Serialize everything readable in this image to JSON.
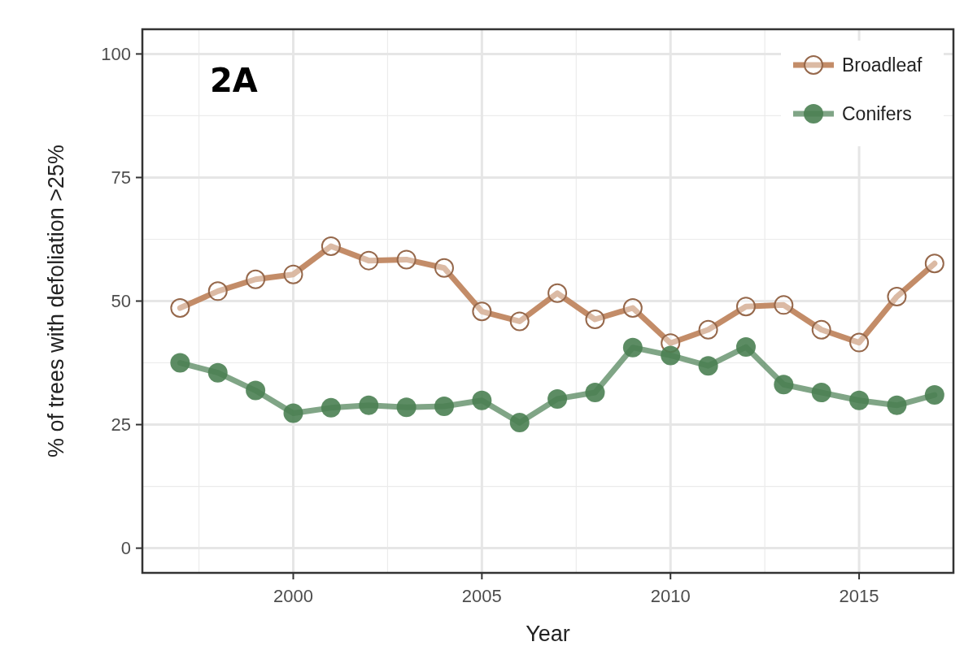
{
  "chart_data": {
    "type": "line",
    "title": "2A",
    "xlabel": "Year",
    "ylabel": "% of trees with defoliation >25%",
    "x": [
      1997,
      1998,
      1999,
      2000,
      2001,
      2002,
      2003,
      2004,
      2005,
      2006,
      2007,
      2008,
      2009,
      2010,
      2011,
      2012,
      2013,
      2014,
      2015,
      2016,
      2017
    ],
    "series": [
      {
        "name": "Broadleaf",
        "color": "#c08660",
        "values": [
          48.6,
          52.0,
          54.4,
          55.4,
          61.1,
          58.2,
          58.4,
          56.7,
          47.9,
          45.9,
          51.6,
          46.3,
          48.6,
          41.5,
          44.2,
          48.9,
          49.2,
          44.2,
          41.6,
          50.9,
          57.6
        ]
      },
      {
        "name": "Conifers",
        "color": "#4a7f52",
        "values": [
          37.5,
          35.5,
          31.9,
          27.3,
          28.4,
          28.9,
          28.5,
          28.7,
          29.9,
          25.4,
          30.2,
          31.5,
          40.6,
          39.0,
          36.9,
          40.7,
          33.1,
          31.5,
          29.9,
          28.9,
          31.0
        ]
      }
    ],
    "xlim": [
      1996,
      2017.5
    ],
    "xticks": [
      2000,
      2005,
      2010,
      2015
    ],
    "ylim": [
      -5,
      105
    ],
    "yticks": [
      0,
      25,
      50,
      75,
      100
    ],
    "grid": true,
    "legend": "top right",
    "marker": "circle",
    "line_style": "solid"
  }
}
